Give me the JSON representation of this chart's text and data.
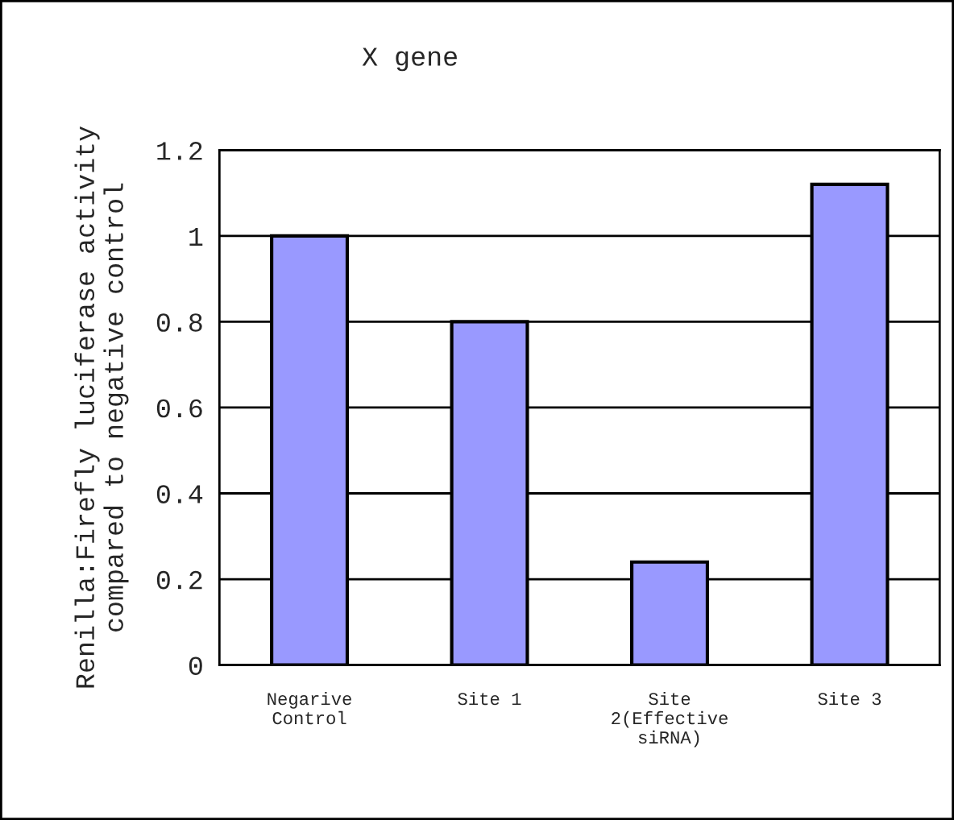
{
  "chart_data": {
    "type": "bar",
    "title": "X gene",
    "ylabel": "Renilla:Firefly luciferase activity\ncompared to negative control",
    "categories": [
      "Negarive\nControl",
      "Site 1",
      "Site\n2(Effective\nsiRNA)",
      "Site 3"
    ],
    "values": [
      1.0,
      0.8,
      0.24,
      1.12
    ],
    "color": "#9999ff",
    "ylim": [
      0,
      1.2
    ],
    "yticks": [
      0,
      {
        "value": 0.2,
        "label": "0.2"
      },
      {
        "value": 0.4,
        "label": "0.4"
      },
      {
        "value": 0.6,
        "label": "0.6"
      },
      {
        "value": 0.8,
        "label": "0.8"
      },
      1,
      {
        "value": 1.2,
        "label": "1.2"
      }
    ],
    "grid": "y"
  }
}
